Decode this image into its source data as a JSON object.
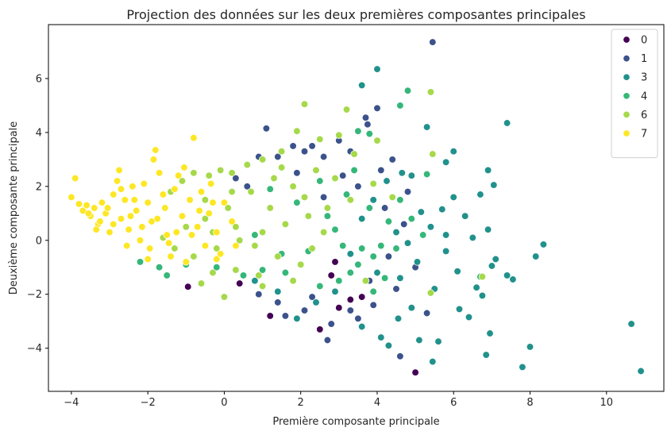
{
  "chart_data": {
    "type": "scatter",
    "title": "Projection des données sur les deux premières composantes principales",
    "xlabel": "Première composante principale",
    "ylabel": "Deuxième composante principale",
    "xlim": [
      -4.6,
      11.5
    ],
    "ylim": [
      -5.6,
      8.0
    ],
    "xticks": [
      -4,
      -2,
      0,
      2,
      4,
      6,
      8,
      10
    ],
    "yticks": [
      -4,
      -2,
      0,
      2,
      4,
      6
    ],
    "grid": false,
    "legend_position": "top-right",
    "series": [
      {
        "name": "0",
        "color": "#440154",
        "points": [
          [
            -0.95,
            -1.72
          ],
          [
            5.0,
            -4.9
          ],
          [
            1.2,
            -2.8
          ],
          [
            3.6,
            -2.1
          ],
          [
            2.5,
            -3.3
          ],
          [
            2.8,
            -1.3
          ],
          [
            3.3,
            -2.2
          ],
          [
            0.4,
            -1.6
          ],
          [
            2.9,
            -0.8
          ],
          [
            3.0,
            -2.5
          ]
        ]
      },
      {
        "name": "1",
        "color": "#3b528b",
        "points": [
          [
            5.45,
            7.35
          ],
          [
            4.0,
            4.9
          ],
          [
            3.7,
            4.55
          ],
          [
            3.75,
            4.3
          ],
          [
            1.1,
            4.15
          ],
          [
            2.3,
            3.5
          ],
          [
            3.0,
            3.7
          ],
          [
            1.8,
            3.5
          ],
          [
            2.6,
            3.1
          ],
          [
            3.3,
            3.3
          ],
          [
            4.4,
            3.0
          ],
          [
            4.1,
            2.6
          ],
          [
            1.4,
            3.1
          ],
          [
            2.1,
            3.3
          ],
          [
            0.9,
            3.1
          ],
          [
            0.3,
            2.3
          ],
          [
            0.6,
            2.0
          ],
          [
            1.9,
            2.5
          ],
          [
            3.5,
            2.0
          ],
          [
            4.8,
            1.8
          ],
          [
            4.7,
            0.6
          ],
          [
            4.3,
            -0.6
          ],
          [
            5.0,
            -1.0
          ],
          [
            4.5,
            -1.8
          ],
          [
            3.9,
            -2.4
          ],
          [
            3.3,
            -2.6
          ],
          [
            2.7,
            -3.7
          ],
          [
            2.1,
            -2.6
          ],
          [
            1.4,
            -2.3
          ],
          [
            0.9,
            -2.0
          ],
          [
            5.3,
            -2.7
          ],
          [
            4.6,
            -4.3
          ],
          [
            3.5,
            -2.9
          ],
          [
            2.8,
            -3.1
          ],
          [
            2.3,
            -2.1
          ],
          [
            1.6,
            -2.8
          ],
          [
            2.6,
            1.6
          ],
          [
            3.1,
            2.4
          ],
          [
            4.2,
            1.2
          ],
          [
            3.8,
            -1.5
          ]
        ]
      },
      {
        "name": "3",
        "color": "#21918c",
        "points": [
          [
            4.0,
            6.35
          ],
          [
            3.6,
            5.75
          ],
          [
            7.4,
            4.35
          ],
          [
            5.3,
            4.2
          ],
          [
            6.0,
            3.3
          ],
          [
            5.8,
            2.9
          ],
          [
            6.9,
            2.6
          ],
          [
            7.05,
            2.05
          ],
          [
            6.7,
            1.7
          ],
          [
            6.0,
            1.6
          ],
          [
            5.7,
            1.15
          ],
          [
            6.3,
            0.9
          ],
          [
            5.4,
            0.5
          ],
          [
            5.8,
            0.2
          ],
          [
            6.5,
            0.1
          ],
          [
            6.9,
            0.4
          ],
          [
            7.1,
            -0.7
          ],
          [
            8.35,
            -0.15
          ],
          [
            8.15,
            -0.6
          ],
          [
            7.0,
            -0.95
          ],
          [
            6.1,
            -1.15
          ],
          [
            7.4,
            -1.3
          ],
          [
            7.55,
            -1.45
          ],
          [
            6.6,
            -1.75
          ],
          [
            6.75,
            -2.05
          ],
          [
            6.15,
            -2.55
          ],
          [
            6.4,
            -2.85
          ],
          [
            6.95,
            -3.45
          ],
          [
            6.85,
            -4.25
          ],
          [
            7.8,
            -4.7
          ],
          [
            8.0,
            -3.95
          ],
          [
            10.65,
            -3.1
          ],
          [
            10.9,
            -4.85
          ],
          [
            5.6,
            -3.75
          ],
          [
            5.45,
            -4.5
          ],
          [
            5.1,
            -3.7
          ],
          [
            4.55,
            -2.9
          ],
          [
            4.1,
            -3.6
          ],
          [
            4.3,
            -3.9
          ],
          [
            3.6,
            -3.2
          ],
          [
            4.9,
            -2.5
          ],
          [
            5.5,
            -1.8
          ],
          [
            5.05,
            -0.8
          ],
          [
            4.8,
            -0.1
          ],
          [
            4.5,
            0.3
          ],
          [
            5.15,
            1.05
          ],
          [
            4.65,
            2.5
          ],
          [
            4.9,
            2.4
          ],
          [
            4.25,
            2.2
          ],
          [
            3.9,
            1.5
          ],
          [
            3.6,
            0.8
          ],
          [
            3.3,
            -0.5
          ],
          [
            2.9,
            -1.9
          ],
          [
            2.4,
            -2.3
          ],
          [
            1.9,
            -2.9
          ],
          [
            1.4,
            -1.9
          ],
          [
            0.8,
            -1.5
          ],
          [
            4.0,
            -1.2
          ],
          [
            4.6,
            -1.4
          ],
          [
            5.8,
            -0.4
          ]
        ]
      },
      {
        "name": "4",
        "color": "#35b779",
        "points": [
          [
            4.8,
            5.55
          ],
          [
            4.6,
            5.0
          ],
          [
            3.5,
            4.05
          ],
          [
            3.8,
            3.95
          ],
          [
            5.3,
            2.45
          ],
          [
            4.6,
            1.5
          ],
          [
            3.8,
            1.2
          ],
          [
            3.2,
            1.7
          ],
          [
            4.9,
            0.8
          ],
          [
            5.2,
            0.2
          ],
          [
            4.5,
            -0.3
          ],
          [
            3.9,
            -0.6
          ],
          [
            4.1,
            -0.2
          ],
          [
            3.5,
            -0.9
          ],
          [
            3.0,
            -1.5
          ],
          [
            2.5,
            -1.7
          ],
          [
            3.3,
            -1.2
          ],
          [
            3.6,
            -0.3
          ],
          [
            2.9,
            0.4
          ],
          [
            2.2,
            -0.4
          ],
          [
            1.6,
            -1.2
          ],
          [
            1.0,
            -1.1
          ],
          [
            0.5,
            -1.3
          ],
          [
            -0.2,
            -1.0
          ],
          [
            -1.0,
            -0.9
          ],
          [
            -1.7,
            -1.0
          ],
          [
            -2.2,
            -0.8
          ],
          [
            -1.5,
            -1.3
          ],
          [
            6.7,
            -1.35
          ],
          [
            4.2,
            -1.4
          ],
          [
            3.9,
            -1.9
          ],
          [
            1.2,
            1.9
          ],
          [
            2.5,
            2.2
          ],
          [
            3.1,
            -0.2
          ],
          [
            2.7,
            0.9
          ],
          [
            4.3,
            0.7
          ],
          [
            3.4,
            2.6
          ],
          [
            1.9,
            1.4
          ],
          [
            0.8,
            0.2
          ],
          [
            1.5,
            -0.5
          ]
        ]
      },
      {
        "name": "6",
        "color": "#a6d94a",
        "points": [
          [
            2.1,
            5.05
          ],
          [
            5.4,
            5.5
          ],
          [
            3.2,
            4.85
          ],
          [
            4.0,
            3.7
          ],
          [
            5.45,
            3.2
          ],
          [
            3.0,
            3.9
          ],
          [
            2.5,
            3.75
          ],
          [
            1.9,
            4.05
          ],
          [
            1.5,
            3.3
          ],
          [
            1.0,
            3.0
          ],
          [
            0.6,
            2.8
          ],
          [
            0.2,
            2.5
          ],
          [
            -0.1,
            2.6
          ],
          [
            -0.4,
            2.4
          ],
          [
            -0.8,
            2.5
          ],
          [
            -1.1,
            2.2
          ],
          [
            -1.4,
            1.8
          ],
          [
            -0.5,
            1.5
          ],
          [
            0.1,
            1.2
          ],
          [
            0.7,
            1.8
          ],
          [
            1.3,
            2.3
          ],
          [
            1.8,
            2.0
          ],
          [
            2.4,
            2.6
          ],
          [
            2.9,
            2.3
          ],
          [
            3.3,
            1.5
          ],
          [
            2.7,
            1.2
          ],
          [
            2.2,
            0.9
          ],
          [
            1.6,
            0.6
          ],
          [
            1.0,
            0.3
          ],
          [
            0.4,
            0.0
          ],
          [
            -0.2,
            -0.3
          ],
          [
            -0.8,
            -0.6
          ],
          [
            -1.3,
            -0.3
          ],
          [
            -1.6,
            0.1
          ],
          [
            -1.0,
            0.5
          ],
          [
            -0.5,
            0.8
          ],
          [
            0.3,
            0.5
          ],
          [
            0.8,
            -0.2
          ],
          [
            1.4,
            -0.6
          ],
          [
            2.0,
            -0.9
          ],
          [
            0.9,
            -1.3
          ],
          [
            0.3,
            -1.1
          ],
          [
            -0.3,
            -1.2
          ],
          [
            -0.6,
            -1.6
          ],
          [
            0.0,
            -2.1
          ],
          [
            1.0,
            -1.7
          ],
          [
            1.8,
            -1.5
          ],
          [
            5.4,
            -1.95
          ],
          [
            6.75,
            -1.35
          ],
          [
            3.7,
            -1.5
          ],
          [
            2.6,
            0.3
          ],
          [
            2.1,
            1.6
          ],
          [
            1.2,
            1.2
          ],
          [
            0.2,
            1.8
          ],
          [
            -0.3,
            0.3
          ],
          [
            3.4,
            3.2
          ],
          [
            3.9,
            2.1
          ],
          [
            4.4,
            1.6
          ],
          [
            1.5,
            2.7
          ],
          [
            2.3,
            -0.3
          ]
        ]
      },
      {
        "name": "7",
        "color": "#fde725",
        "points": [
          [
            -4.0,
            1.6
          ],
          [
            -3.9,
            2.3
          ],
          [
            -3.8,
            1.35
          ],
          [
            -3.7,
            1.1
          ],
          [
            -3.6,
            1.3
          ],
          [
            -3.5,
            0.9
          ],
          [
            -3.4,
            1.2
          ],
          [
            -3.3,
            0.6
          ],
          [
            -3.2,
            1.4
          ],
          [
            -3.1,
            1.0
          ],
          [
            -3.0,
            0.3
          ],
          [
            -2.9,
            1.7
          ],
          [
            -2.8,
            2.2
          ],
          [
            -2.75,
            2.6
          ],
          [
            -2.7,
            0.8
          ],
          [
            -2.6,
            1.5
          ],
          [
            -2.5,
            0.4
          ],
          [
            -2.4,
            2.0
          ],
          [
            -2.3,
            1.1
          ],
          [
            -2.2,
            0.0
          ],
          [
            -2.1,
            2.1
          ],
          [
            -2.0,
            1.4
          ],
          [
            -1.95,
            -0.3
          ],
          [
            -1.9,
            0.7
          ],
          [
            -1.8,
            3.35
          ],
          [
            -1.85,
            3.0
          ],
          [
            -1.7,
            2.5
          ],
          [
            -1.6,
            1.7
          ],
          [
            -1.5,
            0.2
          ],
          [
            -1.4,
            -0.6
          ],
          [
            -1.3,
            1.9
          ],
          [
            -1.2,
            2.4
          ],
          [
            -1.1,
            0.9
          ],
          [
            -1.0,
            -0.8
          ],
          [
            -0.9,
            1.5
          ],
          [
            -0.8,
            3.8
          ],
          [
            -0.7,
            0.5
          ],
          [
            -0.6,
            1.8
          ],
          [
            -0.5,
            -0.2
          ],
          [
            -0.4,
            1.0
          ],
          [
            -0.3,
            1.4
          ],
          [
            -0.2,
            0.3
          ],
          [
            -0.1,
            -0.5
          ],
          [
            0.0,
            1.4
          ],
          [
            0.2,
            0.7
          ],
          [
            -2.7,
            1.9
          ],
          [
            -2.9,
            0.6
          ],
          [
            -3.05,
            1.2
          ],
          [
            -3.35,
            0.4
          ],
          [
            -2.55,
            -0.2
          ],
          [
            -2.45,
            0.9
          ],
          [
            -2.15,
            0.5
          ],
          [
            -1.75,
            0.8
          ],
          [
            -1.55,
            1.2
          ],
          [
            -1.25,
            0.3
          ],
          [
            -0.85,
            0.2
          ],
          [
            -0.65,
            1.1
          ],
          [
            -0.35,
            2.1
          ],
          [
            -1.05,
            2.7
          ],
          [
            -2.0,
            -0.7
          ],
          [
            0.3,
            -0.2
          ],
          [
            -0.2,
            -0.7
          ],
          [
            -1.45,
            -0.1
          ],
          [
            -2.35,
            1.5
          ],
          [
            -3.25,
            0.7
          ],
          [
            -3.55,
            1.0
          ]
        ]
      }
    ]
  }
}
